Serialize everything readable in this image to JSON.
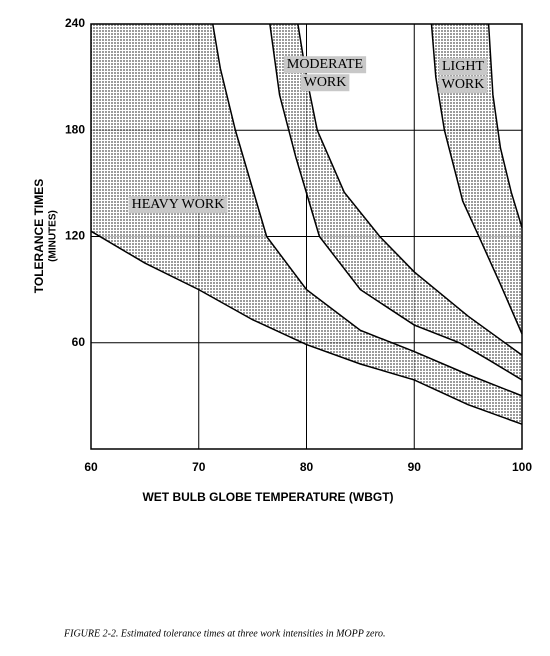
{
  "chart_data": {
    "type": "band",
    "ylabel": [
      "TOLERANCE TIMES",
      "(MINUTES)"
    ],
    "xlabel": "WET BULB GLOBE TEMPERATURE (WBGT)",
    "caption": "FIGURE 2-2. Estimated tolerance times at three work intensities in MOPP zero.",
    "xlim": [
      60,
      100
    ],
    "ylim": [
      0,
      240
    ],
    "xticks": [
      60,
      70,
      80,
      90,
      100
    ],
    "yticks": [
      60,
      120,
      180,
      240
    ],
    "grid": true,
    "color": "#c8c8c8",
    "bands": [
      {
        "label": [
          "HEAVY WORK"
        ],
        "lower": {
          "x": [
            60,
            65,
            70,
            75,
            80,
            85,
            90,
            95,
            100
          ],
          "y": [
            123,
            105,
            90,
            73,
            59,
            48,
            39,
            25,
            14
          ]
        },
        "upper": {
          "x": [
            71.3,
            72,
            73.4,
            76.3,
            80,
            85,
            90,
            95,
            100
          ],
          "y": [
            240,
            215,
            180,
            120,
            90,
            67,
            55,
            42,
            30
          ]
        }
      },
      {
        "label": [
          "MODERATE",
          "WORK"
        ],
        "lower": {
          "x": [
            76.6,
            77.5,
            79,
            81.2,
            85,
            90,
            94.2,
            97,
            100
          ],
          "y": [
            240,
            200,
            165,
            120,
            90,
            70,
            60,
            50,
            39
          ]
        },
        "upper": {
          "x": [
            79.2,
            80,
            81,
            83.5,
            86.8,
            90,
            95,
            100
          ],
          "y": [
            240,
            210,
            180,
            145,
            120,
            100,
            75,
            53
          ]
        }
      },
      {
        "label": [
          "LIGHT",
          "WORK"
        ],
        "lower": {
          "x": [
            91.6,
            92,
            92.8,
            94.5,
            96,
            98,
            100
          ],
          "y": [
            240,
            210,
            180,
            140,
            120,
            93,
            65
          ]
        },
        "upper": {
          "x": [
            96.9,
            97.3,
            98,
            99,
            100
          ],
          "y": [
            240,
            200,
            170,
            145,
            125
          ]
        }
      }
    ]
  }
}
